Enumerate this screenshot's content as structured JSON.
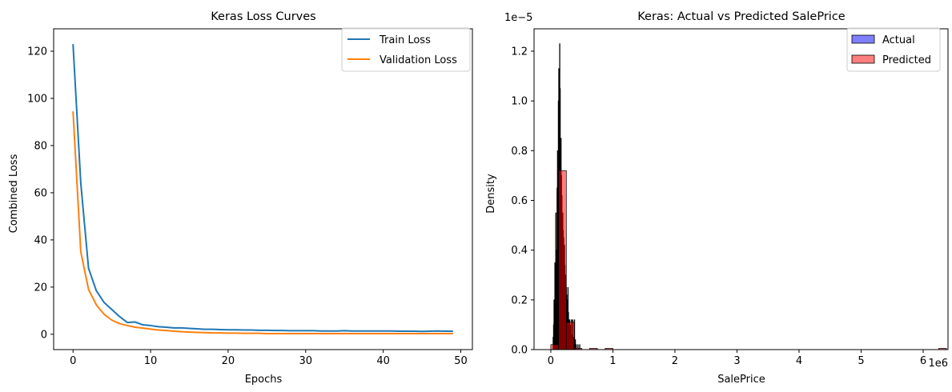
{
  "chart_data": [
    {
      "type": "line",
      "title": "Keras Loss Curves",
      "xlabel": "Epochs",
      "ylabel": "Combined Loss",
      "xlim": [
        -2.5,
        51.5
      ],
      "ylim": [
        -6.5,
        129.5
      ],
      "xticks": [
        0,
        10,
        20,
        30,
        40,
        50
      ],
      "yticks": [
        0,
        20,
        40,
        60,
        80,
        100,
        120
      ],
      "legend_position": "upper right",
      "series": [
        {
          "name": "Train Loss",
          "color": "#1f77b4",
          "x": [
            0,
            1,
            2,
            3,
            4,
            5,
            6,
            7,
            8,
            9,
            10,
            11,
            12,
            13,
            14,
            15,
            16,
            17,
            18,
            19,
            20,
            21,
            22,
            23,
            24,
            25,
            26,
            27,
            28,
            29,
            30,
            31,
            32,
            33,
            34,
            35,
            36,
            37,
            38,
            39,
            40,
            41,
            42,
            43,
            44,
            45,
            46,
            47,
            48,
            49
          ],
          "values": [
            123,
            64,
            28,
            18.5,
            13.5,
            10.5,
            7.5,
            5,
            5.2,
            4,
            3.7,
            3.2,
            3,
            2.7,
            2.7,
            2.5,
            2.3,
            2.1,
            2.1,
            2.0,
            1.9,
            1.9,
            1.8,
            1.8,
            1.7,
            1.7,
            1.6,
            1.6,
            1.5,
            1.5,
            1.5,
            1.5,
            1.4,
            1.4,
            1.4,
            1.5,
            1.4,
            1.4,
            1.4,
            1.4,
            1.4,
            1.4,
            1.3,
            1.3,
            1.3,
            1.2,
            1.3,
            1.4,
            1.3,
            1.3
          ]
        },
        {
          "name": "Validation Loss",
          "color": "#ff7f0e",
          "x": [
            0,
            1,
            2,
            3,
            4,
            5,
            6,
            7,
            8,
            9,
            10,
            11,
            12,
            13,
            14,
            15,
            16,
            17,
            18,
            19,
            20,
            21,
            22,
            23,
            24,
            25,
            26,
            27,
            28,
            29,
            30,
            31,
            32,
            33,
            34,
            35,
            36,
            37,
            38,
            39,
            40,
            41,
            42,
            43,
            44,
            45,
            46,
            47,
            48,
            49
          ],
          "values": [
            94.5,
            35,
            19,
            12.5,
            8.5,
            6,
            4.5,
            3.7,
            3.0,
            2.6,
            2.2,
            1.8,
            1.6,
            1.3,
            1.1,
            0.9,
            0.8,
            0.7,
            0.6,
            0.6,
            0.5,
            0.5,
            0.4,
            0.4,
            0.4,
            0.3,
            0.3,
            0.3,
            0.3,
            0.3,
            0.3,
            0.3,
            0.3,
            0.3,
            0.3,
            0.3,
            0.3,
            0.3,
            0.3,
            0.3,
            0.3,
            0.3,
            0.3,
            0.3,
            0.3,
            0.3,
            0.3,
            0.3,
            0.3,
            0.3
          ]
        }
      ]
    },
    {
      "type": "histogram",
      "title": "Keras: Actual vs Predicted SalePrice",
      "xlabel": "SalePrice",
      "ylabel": "Density",
      "x_offset_text": "1e6",
      "y_offset_text": "1e−5",
      "xlim": [
        -270000,
        6400000
      ],
      "ylim": [
        0,
        1.29e-05
      ],
      "xticks": [
        0,
        1,
        2,
        3,
        4,
        5,
        6
      ],
      "yticks": [
        "0.0",
        "0.2",
        "0.4",
        "0.6",
        "0.8",
        "1.0",
        "1.2"
      ],
      "legend_position": "upper right",
      "series": [
        {
          "name": "Actual",
          "color": "#0000ff",
          "bin_width": 7000,
          "bins": [
            [
              35000,
              5e-07
            ],
            [
              42000,
              1e-06
            ],
            [
              49000,
              2e-06
            ],
            [
              56000,
              1e-06
            ],
            [
              63000,
              3.5e-06
            ],
            [
              70000,
              2e-06
            ],
            [
              77000,
              5.5e-06
            ],
            [
              84000,
              4e-06
            ],
            [
              91000,
              4e-06
            ],
            [
              98000,
              6.5e-06
            ],
            [
              105000,
              8e-06
            ],
            [
              112000,
              7e-06
            ],
            [
              119000,
              1e-05
            ],
            [
              126000,
              1.13e-05
            ],
            [
              133000,
              1.05e-05
            ],
            [
              140000,
              1.23e-05
            ],
            [
              147000,
              1.05e-05
            ],
            [
              154000,
              7.5e-06
            ],
            [
              161000,
              8.5e-06
            ],
            [
              168000,
              7e-06
            ],
            [
              175000,
              6.2e-06
            ],
            [
              182000,
              5.5e-06
            ],
            [
              189000,
              5.5e-06
            ],
            [
              196000,
              4.8e-06
            ],
            [
              203000,
              4.5e-06
            ],
            [
              210000,
              4e-06
            ],
            [
              217000,
              4.2e-06
            ],
            [
              224000,
              3.4e-06
            ],
            [
              231000,
              3e-06
            ],
            [
              238000,
              3e-06
            ],
            [
              245000,
              2.5e-06
            ],
            [
              252000,
              2.2e-06
            ],
            [
              259000,
              2e-06
            ],
            [
              266000,
              1.2e-06
            ],
            [
              273000,
              2.5e-06
            ],
            [
              280000,
              1.5e-06
            ],
            [
              287000,
              1.2e-06
            ],
            [
              294000,
              1e-06
            ],
            [
              301000,
              1.2e-06
            ],
            [
              308000,
              8e-07
            ],
            [
              315000,
              1e-06
            ],
            [
              322000,
              6e-07
            ],
            [
              329000,
              1.2e-06
            ],
            [
              336000,
              6e-07
            ],
            [
              343000,
              5e-07
            ],
            [
              350000,
              1.2e-06
            ],
            [
              364000,
              5e-07
            ],
            [
              378000,
              1.2e-06
            ],
            [
              392000,
              4e-07
            ],
            [
              406000,
              2e-07
            ],
            [
              434000,
              2e-07
            ],
            [
              462000,
              2e-07
            ]
          ]
        },
        {
          "name": "Predicted",
          "color": "#ff0000",
          "bin_width": 125000,
          "bins": [
            [
              0,
              2e-07
            ],
            [
              125000,
              7.2e-06
            ],
            [
              250000,
              1.1e-06
            ],
            [
              375000,
              5e-08
            ],
            [
              625000,
              5e-08
            ],
            [
              875000,
              5e-08
            ],
            [
              6250000,
              5e-08
            ]
          ]
        }
      ]
    }
  ]
}
